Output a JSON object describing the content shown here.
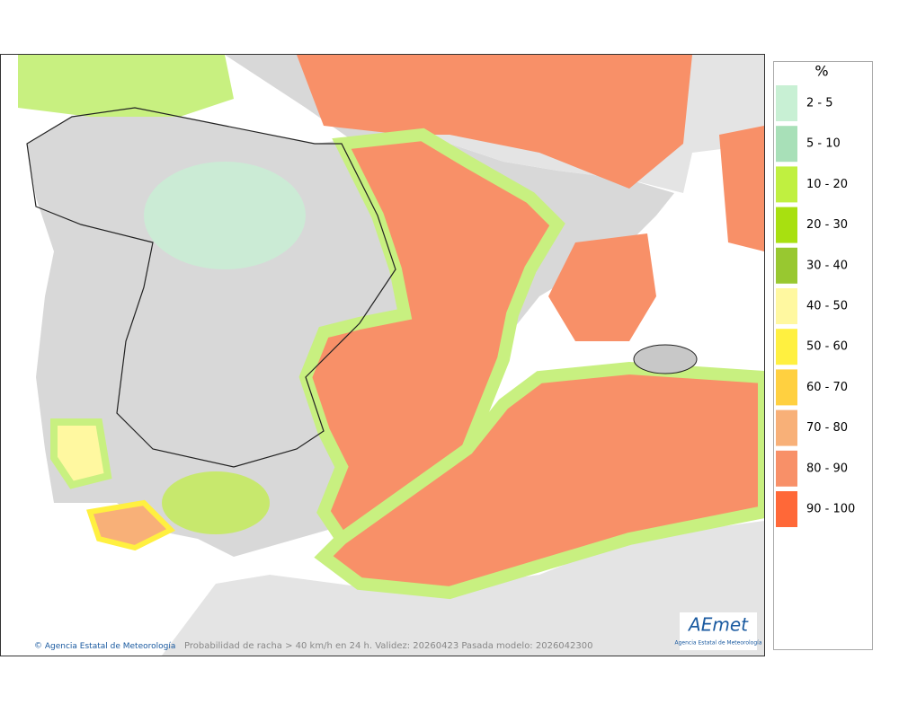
{
  "map": {
    "caption": "Probabilidad de racha > 40 km/h en 24 h. Validez: 20260423 Pasada modelo: 2026042300",
    "credit": "Agencia Estatal de Meteorología",
    "logo": {
      "mark": "AEmet",
      "subtitle": "Agencia Estatal de Meteorología"
    }
  },
  "legend": {
    "title": "%",
    "items": [
      {
        "label": "2 - 5",
        "color": "#c8f0d4"
      },
      {
        "label": "5 - 10",
        "color": "#a8e0b8"
      },
      {
        "label": "10 - 20",
        "color": "#c0f040"
      },
      {
        "label": "20 - 30",
        "color": "#a8e010"
      },
      {
        "label": "30 - 40",
        "color": "#98c830"
      },
      {
        "label": "40 - 50",
        "color": "#fff8a0"
      },
      {
        "label": "50 - 60",
        "color": "#fff040"
      },
      {
        "label": "60 - 70",
        "color": "#ffd040"
      },
      {
        "label": "70 - 80",
        "color": "#f8b078"
      },
      {
        "label": "80 - 90",
        "color": "#f89068"
      },
      {
        "label": "90 - 100",
        "color": "#ff6838"
      }
    ]
  }
}
